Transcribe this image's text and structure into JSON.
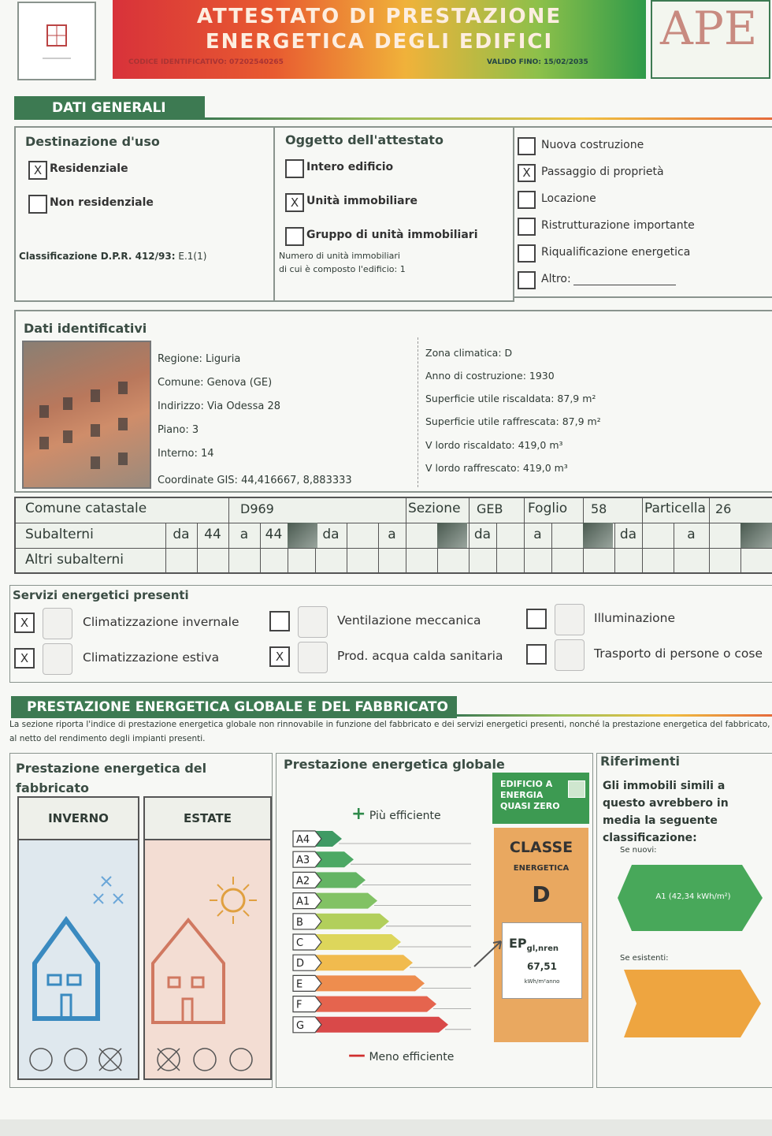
{
  "header": {
    "logo_text": "APE",
    "line1": "ATTESTATO DI PRESTAZIONE",
    "line2": "ENERGETICA DEGLI EDIFICI",
    "code": "CODICE IDENTIFICATIVO: 07202540265",
    "valid_until": "VALIDO FINO: 15/02/2035"
  },
  "general": {
    "title": "DATI GENERALI",
    "use": {
      "heading": "Destinazione d'uso",
      "options": [
        {
          "label": "Residenziale",
          "mark": "X"
        },
        {
          "label": "Non residenziale"
        }
      ],
      "classification_label": "Classificazione D.P.R. 412/93:",
      "classification_value": "E.1(1)"
    },
    "object": {
      "heading": "Oggetto dell'attestato",
      "options": [
        {
          "label": "Intero edificio"
        },
        {
          "label": "Unità immobiliare",
          "mark": "X"
        },
        {
          "label": "Gruppo di unità immobiliari"
        }
      ],
      "note_line1": "Numero di unità immobiliari",
      "note_line2": "di cui è composto l'edificio: 1"
    },
    "reason": {
      "options": [
        {
          "label": "Nuova costruzione"
        },
        {
          "label": "Passaggio di proprietà",
          "mark": "X"
        },
        {
          "label": "Locazione"
        },
        {
          "label": "Ristrutturazione importante"
        },
        {
          "label": "Riqualificazione energetica"
        },
        {
          "label": "Altro:"
        }
      ]
    }
  },
  "identification": {
    "heading": "Dati identificativi",
    "left": [
      "Regione: Liguria",
      "Comune: Genova (GE)",
      "Indirizzo: Via Odessa 28",
      "Piano: 3",
      "Interno: 14",
      "Coordinate GIS: 44,416667, 8,883333"
    ],
    "right": [
      "Zona climatica: D",
      "Anno di costruzione: 1930",
      "Superficie utile riscaldata: 87,9 m²",
      "Superficie utile raffrescata: 87,9 m²",
      "V lordo riscaldato: 419,0 m³",
      "V lordo raffrescato: 419,0 m³"
    ]
  },
  "cadastre": {
    "row1": [
      {
        "label": "Comune catastale",
        "value": "D969"
      },
      {
        "label": "Sezione",
        "value": "GEB"
      },
      {
        "label": "Foglio",
        "value": "58"
      },
      {
        "label": "Particella",
        "value": "26"
      }
    ],
    "row2_label": "Subalterni",
    "row2_cells": [
      "da",
      "44",
      "a",
      "44",
      "da",
      "a",
      "da",
      "a",
      "da",
      "a"
    ],
    "row3_label": "Altri subalterni"
  },
  "services": {
    "heading": "Servizi energetici presenti",
    "items": [
      {
        "label": "Climatizzazione invernale",
        "mark": "X"
      },
      {
        "label": "Climatizzazione estiva",
        "mark": "X"
      },
      {
        "label": "Ventilazione meccanica"
      },
      {
        "label": "Prod. acqua calda sanitaria",
        "mark": "X"
      },
      {
        "label": "Illuminazione"
      },
      {
        "label": "Trasporto di persone o cose"
      }
    ]
  },
  "performance": {
    "title": "PRESTAZIONE ENERGETICA GLOBALE E DEL FABBRICATO",
    "description": "La sezione riporta l'indice di prestazione energetica globale non rinnovabile in funzione del fabbricato e dei servizi energetici presenti, nonché la prestazione energetica del fabbricato, al netto del rendimento degli impianti presenti.",
    "building": {
      "heading": "Prestazione energetica del fabbricato",
      "winter": "INVERNO",
      "summer": "ESTATE"
    },
    "global": {
      "heading": "Prestazione energetica globale",
      "more_efficient": "Più efficiente",
      "less_efficient": "Meno efficiente",
      "classes": [
        "A4",
        "A3",
        "A2",
        "A1",
        "B",
        "C",
        "D",
        "E",
        "F",
        "G"
      ],
      "nzeb": "EDIFICIO A ENERGIA QUASI ZERO",
      "class_label": "CLASSE",
      "class_sub": "ENERGETICA",
      "class_value": "D",
      "ep_label": "EP",
      "ep_sub": "gl,nren",
      "ep_value": "67,51",
      "ep_unit": "kWh/m²anno"
    },
    "references": {
      "heading": "Riferimenti",
      "text": "Gli immobili simili a questo avrebbero in media la seguente classificazione:",
      "new_label": "Se nuovi:",
      "new_value": "A1 (42,34 kWh/m²)",
      "existing_label": "Se esistenti:"
    }
  }
}
